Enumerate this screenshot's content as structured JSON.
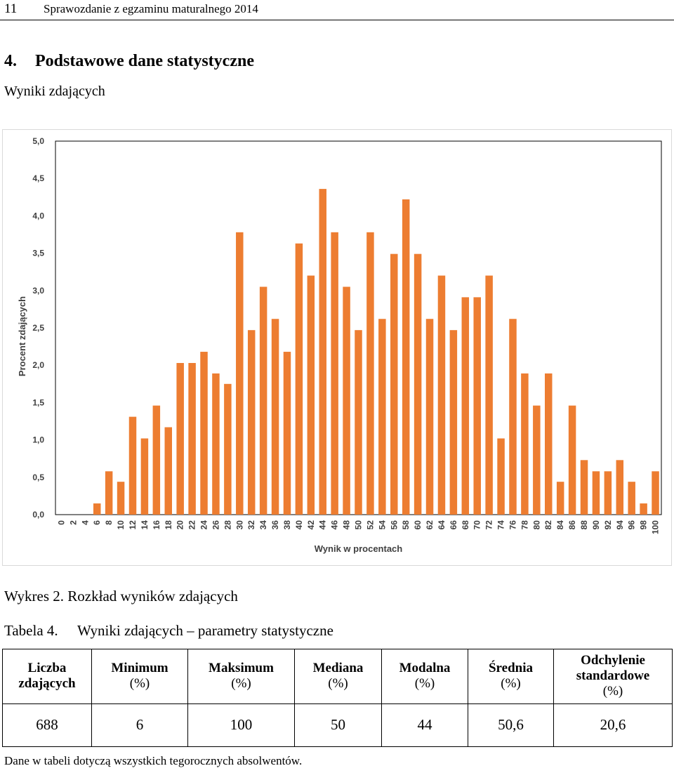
{
  "header": {
    "page_number": "11",
    "running_title": "Sprawozdanie z egzaminu maturalnego 2014"
  },
  "section": {
    "number": "4.",
    "title": "Podstawowe dane statystyczne"
  },
  "subtitle": "Wyniki zdających",
  "figure": {
    "number": "Wykres 2.",
    "caption": "Rozkład wyników zdających"
  },
  "chart_data": {
    "type": "bar",
    "title": "",
    "xlabel": "Wynik w procentach",
    "ylabel": "Procent zdających",
    "ylim": [
      0,
      5
    ],
    "y_ticks": [
      "0,0",
      "0,5",
      "1,0",
      "1,5",
      "2,0",
      "2,5",
      "3,0",
      "3,5",
      "4,0",
      "4,5",
      "5,0"
    ],
    "grid": false,
    "bar_color": "#ed7d31",
    "categories": [
      "0",
      "2",
      "4",
      "6",
      "8",
      "10",
      "12",
      "14",
      "16",
      "18",
      "20",
      "22",
      "24",
      "26",
      "28",
      "30",
      "32",
      "34",
      "36",
      "38",
      "40",
      "42",
      "44",
      "46",
      "48",
      "50",
      "52",
      "54",
      "56",
      "58",
      "60",
      "62",
      "64",
      "66",
      "68",
      "70",
      "72",
      "74",
      "76",
      "78",
      "80",
      "82",
      "84",
      "86",
      "88",
      "90",
      "92",
      "94",
      "96",
      "98",
      "100"
    ],
    "values": [
      0,
      0,
      0,
      0.15,
      0.58,
      0.44,
      1.31,
      1.02,
      1.46,
      1.17,
      2.03,
      2.03,
      2.18,
      1.89,
      1.75,
      3.78,
      2.47,
      3.05,
      2.62,
      2.18,
      3.63,
      3.2,
      4.36,
      3.78,
      3.05,
      2.47,
      3.78,
      2.62,
      3.49,
      4.22,
      3.49,
      2.62,
      3.2,
      2.47,
      2.91,
      2.91,
      3.2,
      1.02,
      2.62,
      1.89,
      1.46,
      1.89,
      0.44,
      1.46,
      0.73,
      0.58,
      0.58,
      0.73,
      0.44,
      0.15,
      0.58
    ]
  },
  "table": {
    "caption_number": "Tabela 4.",
    "caption": "Wyniki zdających – parametry statystyczne",
    "headers": [
      {
        "label": "Liczba zdających",
        "unit": ""
      },
      {
        "label": "Minimum",
        "unit": "(%)"
      },
      {
        "label": "Maksimum",
        "unit": "(%)"
      },
      {
        "label": "Mediana",
        "unit": "(%)"
      },
      {
        "label": "Modalna",
        "unit": "(%)"
      },
      {
        "label": "Średnia",
        "unit": "(%)"
      },
      {
        "label": "Odchylenie standardowe",
        "unit": "(%)"
      }
    ],
    "values": [
      "688",
      "6",
      "100",
      "50",
      "44",
      "50,6",
      "20,6"
    ]
  },
  "note": "Dane w tabeli dotyczą wszystkich tegorocznych absolwentów."
}
